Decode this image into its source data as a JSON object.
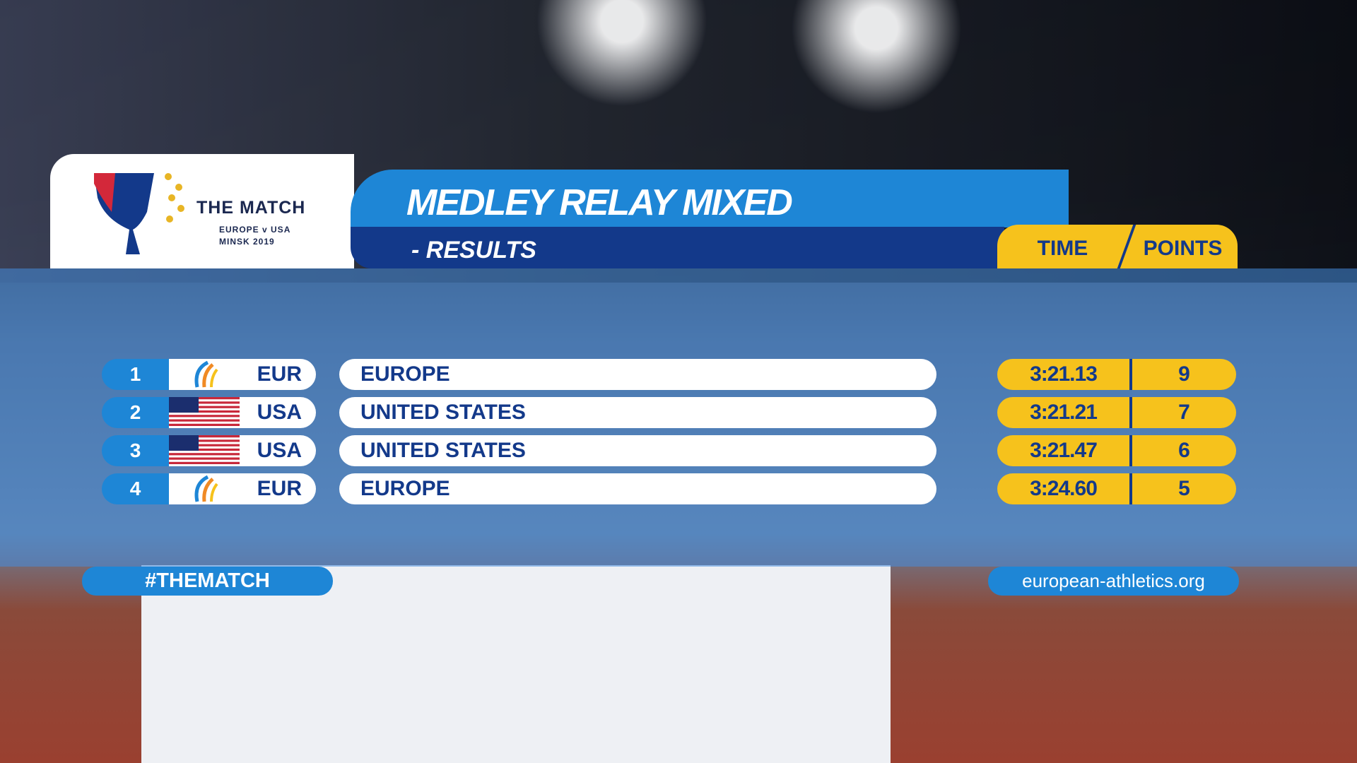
{
  "logo": {
    "title": "THE MATCH",
    "line1": "EUROPE v USA",
    "line2": "MINSK 2019"
  },
  "header": {
    "title": "MEDLEY RELAY MIXED",
    "subtitle": "- RESULTS",
    "time_label": "TIME",
    "points_label": "POINTS"
  },
  "table": {
    "rows": [
      {
        "rank": 1,
        "code": "EUR",
        "team": "EUROPE",
        "time": "3:21.13",
        "points": 9
      },
      {
        "rank": 2,
        "code": "USA",
        "team": "UNITED STATES",
        "time": "3:21.21",
        "points": 7
      },
      {
        "rank": 3,
        "code": "USA",
        "team": "UNITED STATES",
        "time": "3:21.47",
        "points": 6
      },
      {
        "rank": 4,
        "code": "EUR",
        "team": "EUROPE",
        "time": "3:24.60",
        "points": 5
      }
    ]
  },
  "footer": {
    "hashtag": "#THEMATCH",
    "url": "european-athletics.org"
  }
}
